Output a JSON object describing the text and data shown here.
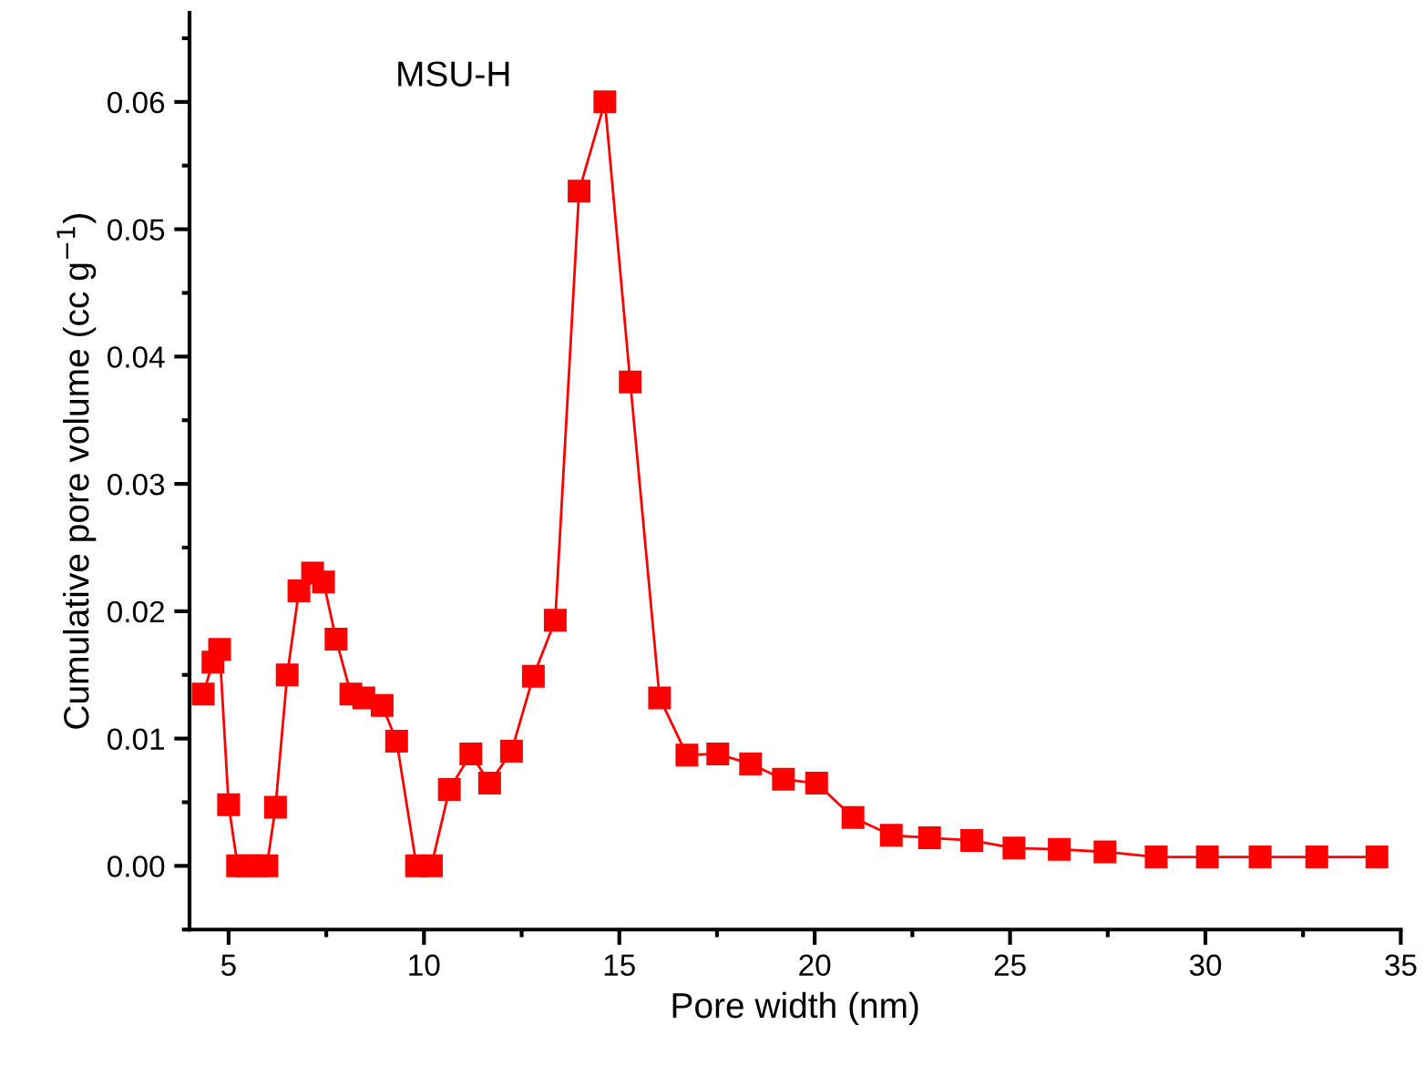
{
  "chart_data": {
    "type": "line",
    "xlabel": "Pore width (nm)",
    "ylabel": "Cumulative pore volume (cc g$^{−1}$)",
    "annotations": [
      "MSU-H"
    ],
    "x": [
      4.35,
      4.6,
      4.77,
      5.0,
      5.23,
      5.5,
      5.75,
      5.98,
      6.2,
      6.5,
      6.8,
      7.15,
      7.43,
      7.75,
      8.13,
      8.46,
      8.93,
      9.3,
      9.81,
      10.19,
      10.65,
      11.2,
      11.68,
      12.24,
      12.8,
      13.36,
      13.97,
      14.63,
      15.28,
      16.03,
      16.73,
      17.52,
      18.36,
      19.2,
      20.05,
      20.98,
      21.96,
      22.94,
      24.02,
      25.1,
      26.26,
      27.43,
      28.74,
      30.05,
      31.4,
      32.85,
      34.39
    ],
    "series": [
      {
        "color": "#ff0000",
        "values": [
          0.0135,
          0.016,
          0.017,
          0.0048,
          0,
          0,
          0,
          0,
          0.0046,
          0.015,
          0.0216,
          0.023,
          0.0223,
          0.0178,
          0.0135,
          0.0132,
          0.0126,
          0.0098,
          0,
          0,
          0.006,
          0.0088,
          0.0065,
          0.009,
          0.0149,
          0.0193,
          0.053,
          0.06,
          0.038,
          0.0132,
          0.0087,
          0.0088,
          0.008,
          0.0068,
          0.0065,
          0.0038,
          0.0024,
          0.0022,
          0.002,
          0.0014,
          0.0013,
          0.0011,
          0.0007,
          0.0007,
          0.0007,
          0.0007,
          0.0007
        ]
      }
    ],
    "marker": "square",
    "line_style": "solid",
    "xlim": [
      4,
      35
    ],
    "xticks": [
      5,
      10,
      15,
      20,
      25,
      30,
      35
    ],
    "ylim": [
      -0.005,
      0.067
    ],
    "yticks": [
      {
        "value": 0,
        "label": "0.00"
      },
      {
        "value": 0.01,
        "label": "0.01"
      },
      {
        "value": 0.02,
        "label": "0.02"
      },
      {
        "value": 0.03,
        "label": "0.03"
      },
      {
        "value": 0.04,
        "label": "0.04"
      },
      {
        "value": 0.05,
        "label": "0.05"
      },
      {
        "value": 0.06,
        "label": "0.06"
      }
    ]
  }
}
